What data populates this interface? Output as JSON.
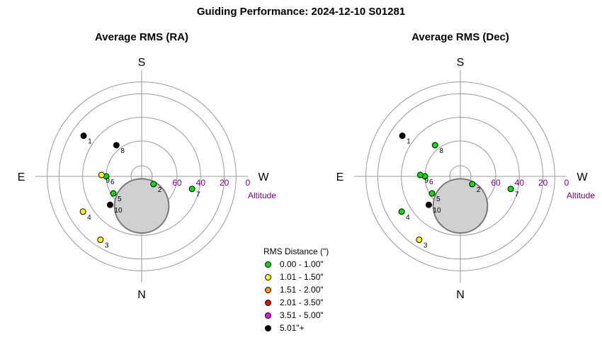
{
  "title": "Guiding Performance: 2024-12-10 S01281",
  "legend": {
    "title": "RMS Distance (\")",
    "items": [
      {
        "label": "0.00 - 1.00\"",
        "color": "#00e000"
      },
      {
        "label": "1.01 - 1.50\"",
        "color": "#ffff00"
      },
      {
        "label": "1.51 - 2.00\"",
        "color": "#ff9900"
      },
      {
        "label": "2.01 - 3.50\"",
        "color": "#ff0000"
      },
      {
        "label": "3.51 - 5.00\"",
        "color": "#ff00ff"
      },
      {
        "label": "5.01\"+",
        "color": "#000000"
      }
    ]
  },
  "chart_data": [
    {
      "type": "scatter",
      "projection": "polar-sky",
      "title": "Average RMS (RA)",
      "directions": {
        "top": "S",
        "bottom": "N",
        "left": "E",
        "right": "W"
      },
      "radial_axis": {
        "label": "Altitude",
        "ticks": [
          60,
          40,
          20,
          0
        ],
        "range": [
          90,
          0
        ]
      },
      "obstruction": {
        "altitude": 65,
        "azimuth": 0,
        "radius_deg": 23,
        "color": "#d0d0d0"
      },
      "points": [
        {
          "label": "1",
          "altitude": 30,
          "azimuth": 235,
          "color": "#000000"
        },
        {
          "label": "2",
          "altitude": 78,
          "azimuth": 57,
          "color": "#00e000"
        },
        {
          "label": "3",
          "altitude": 26,
          "azimuth": 327,
          "color": "#ffff00"
        },
        {
          "label": "4",
          "altitude": 32,
          "azimuth": 301,
          "color": "#ffff00"
        },
        {
          "label": "5",
          "altitude": 62,
          "azimuth": 301,
          "color": "#00e000"
        },
        {
          "label": "6",
          "altitude": 60,
          "azimuth": 270,
          "color": "#00e000"
        },
        {
          "label": "7",
          "altitude": 46,
          "azimuth": 76,
          "color": "#00e000"
        },
        {
          "label": "8",
          "altitude": 56,
          "azimuth": 219,
          "color": "#000000"
        },
        {
          "label": "9",
          "altitude": 56,
          "azimuth": 268,
          "color": "#ffff00"
        },
        {
          "label": "10",
          "altitude": 54,
          "azimuth": 312,
          "color": "#000000"
        }
      ]
    },
    {
      "type": "scatter",
      "projection": "polar-sky",
      "title": "Average RMS (Dec)",
      "directions": {
        "top": "S",
        "bottom": "N",
        "left": "E",
        "right": "W"
      },
      "radial_axis": {
        "label": "Altitude",
        "ticks": [
          60,
          40,
          20,
          0
        ],
        "range": [
          90,
          0
        ]
      },
      "obstruction": {
        "altitude": 65,
        "azimuth": 0,
        "radius_deg": 23,
        "color": "#d0d0d0"
      },
      "points": [
        {
          "label": "1",
          "altitude": 30,
          "azimuth": 235,
          "color": "#000000"
        },
        {
          "label": "2",
          "altitude": 78,
          "azimuth": 57,
          "color": "#00e000"
        },
        {
          "label": "3",
          "altitude": 26,
          "azimuth": 327,
          "color": "#ffff00"
        },
        {
          "label": "4",
          "altitude": 32,
          "azimuth": 301,
          "color": "#00e000"
        },
        {
          "label": "5",
          "altitude": 62,
          "azimuth": 301,
          "color": "#00e000"
        },
        {
          "label": "6",
          "altitude": 60,
          "azimuth": 270,
          "color": "#00e000"
        },
        {
          "label": "7",
          "altitude": 46,
          "azimuth": 76,
          "color": "#00e000"
        },
        {
          "label": "8",
          "altitude": 56,
          "azimuth": 219,
          "color": "#00e000"
        },
        {
          "label": "9",
          "altitude": 56,
          "azimuth": 268,
          "color": "#00e000"
        },
        {
          "label": "10",
          "altitude": 54,
          "azimuth": 312,
          "color": "#000000"
        }
      ]
    }
  ]
}
